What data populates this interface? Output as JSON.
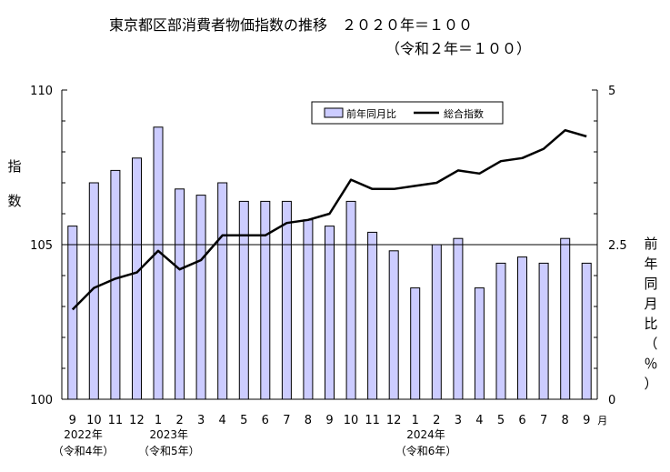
{
  "chart_data": {
    "type": "bar+line",
    "title_line1": "東京都区部消費者物価指数の推移　２０２０年＝１００",
    "title_line2": "（令和２年＝１００）",
    "y_left_label": [
      "指",
      "数"
    ],
    "y_right_label": [
      "前",
      "年",
      "同",
      "月",
      "比",
      "（",
      "％",
      "）"
    ],
    "y_left_range": [
      100,
      110
    ],
    "y_left_ticks": [
      "100",
      "105",
      "110"
    ],
    "y_right_range": [
      0,
      5
    ],
    "y_right_ticks": [
      "0",
      "2.5",
      "5"
    ],
    "categories": [
      "9",
      "10",
      "11",
      "12",
      "1",
      "2",
      "3",
      "4",
      "5",
      "6",
      "7",
      "8",
      "9",
      "10",
      "11",
      "12",
      "1",
      "2",
      "3",
      "4",
      "5",
      "6",
      "7",
      "8",
      "9"
    ],
    "month_unit": "月",
    "year_labels": [
      {
        "after_index": 0,
        "year": "2022年",
        "era": "（令和4年）"
      },
      {
        "after_index": 4,
        "year": "2023年",
        "era": "（令和5年）"
      },
      {
        "after_index": 16,
        "year": "2024年",
        "era": "（令和6年）"
      }
    ],
    "series": [
      {
        "name": "前年同月比",
        "type": "bar",
        "axis": "right",
        "color": "#ccccff",
        "values": [
          2.8,
          3.5,
          3.7,
          3.9,
          4.4,
          3.4,
          3.3,
          3.5,
          3.2,
          3.2,
          3.2,
          2.9,
          2.8,
          3.2,
          2.7,
          2.4,
          1.8,
          2.5,
          2.6,
          1.8,
          2.2,
          2.3,
          2.2,
          2.6,
          2.2
        ]
      },
      {
        "name": "総合指数",
        "type": "line",
        "axis": "left",
        "color": "#000000",
        "values": [
          102.9,
          103.6,
          103.9,
          104.1,
          104.8,
          104.2,
          104.5,
          105.3,
          105.3,
          105.3,
          105.7,
          105.8,
          106.0,
          107.1,
          106.8,
          106.8,
          106.9,
          107.0,
          107.4,
          107.3,
          107.7,
          107.8,
          108.1,
          108.7,
          108.5
        ]
      }
    ],
    "reference_line_left": 105,
    "grid": false,
    "legend": "top-right"
  }
}
